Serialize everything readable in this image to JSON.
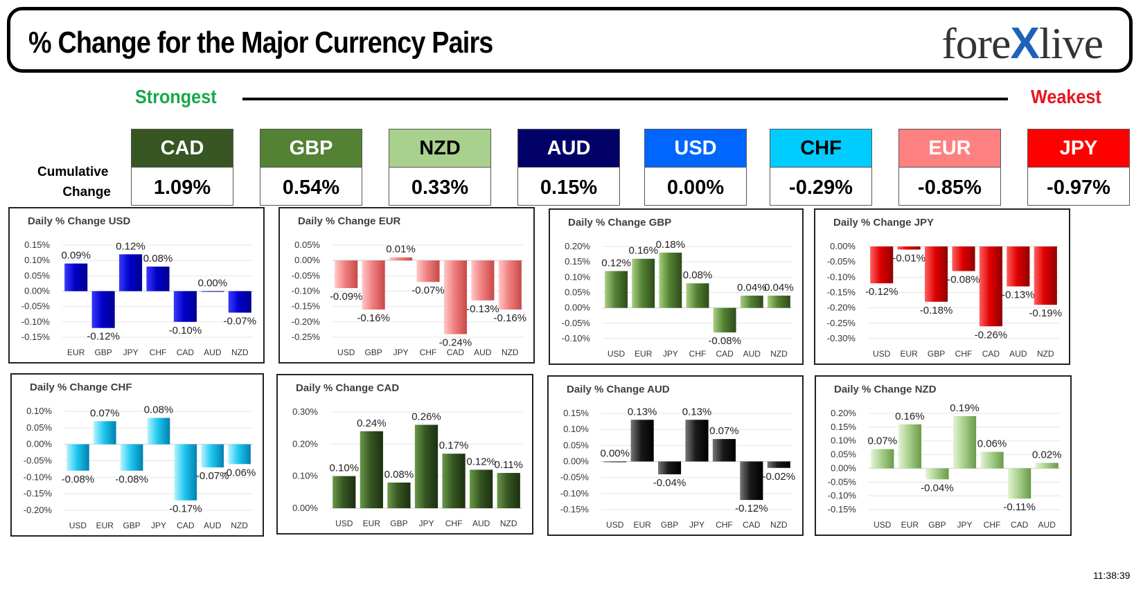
{
  "header": {
    "title": "% Change for the Major Currency Pairs",
    "logo_pre": "fore",
    "logo_x": "X",
    "logo_post": "live"
  },
  "scale": {
    "strongest": "Strongest",
    "weakest": "Weakest"
  },
  "cumulative": {
    "label_line1": "Cumulative",
    "label_line2": "Change",
    "items": [
      {
        "code": "CAD",
        "value": "1.09%",
        "bg": "#375623",
        "fg": "#ffffff"
      },
      {
        "code": "GBP",
        "value": "0.54%",
        "bg": "#548235",
        "fg": "#ffffff"
      },
      {
        "code": "NZD",
        "value": "0.33%",
        "bg": "#a9d18e",
        "fg": "#000000"
      },
      {
        "code": "AUD",
        "value": "0.15%",
        "bg": "#000066",
        "fg": "#ffffff"
      },
      {
        "code": "USD",
        "value": "0.00%",
        "bg": "#0066ff",
        "fg": "#ffffff"
      },
      {
        "code": "CHF",
        "value": "-0.29%",
        "bg": "#00ccff",
        "fg": "#000000"
      },
      {
        "code": "EUR",
        "value": "-0.85%",
        "bg": "#ff8080",
        "fg": "#ffffff"
      },
      {
        "code": "JPY",
        "value": "-0.97%",
        "bg": "#ff0000",
        "fg": "#ffffff"
      }
    ]
  },
  "timestamp": "11:38:39",
  "chart_data": [
    {
      "type": "bar",
      "title": "Daily % Change USD",
      "color": "blue",
      "categories": [
        "EUR",
        "GBP",
        "JPY",
        "CHF",
        "CAD",
        "AUD",
        "NZD"
      ],
      "values": [
        0.09,
        -0.12,
        0.12,
        0.08,
        -0.1,
        0.0,
        -0.07
      ],
      "labels": [
        "0.09%",
        "-0.12%",
        "0.12%",
        "0.08%",
        "-0.10%",
        "0.00%",
        "-0.07%"
      ],
      "ylim": [
        -0.15,
        0.15
      ],
      "yticks": [
        "0.15%",
        "0.10%",
        "0.05%",
        "0.00%",
        "-0.05%",
        "-0.10%",
        "-0.15%"
      ]
    },
    {
      "type": "bar",
      "title": "Daily % Change EUR",
      "color": "pink",
      "categories": [
        "USD",
        "GBP",
        "JPY",
        "CHF",
        "CAD",
        "AUD",
        "NZD"
      ],
      "values": [
        -0.09,
        -0.16,
        0.01,
        -0.07,
        -0.24,
        -0.13,
        -0.16
      ],
      "labels": [
        "-0.09%",
        "-0.16%",
        "0.01%",
        "-0.07%",
        "-0.24%",
        "-0.13%",
        "-0.16%"
      ],
      "ylim": [
        -0.25,
        0.05
      ],
      "yticks": [
        "0.05%",
        "0.00%",
        "-0.05%",
        "-0.10%",
        "-0.15%",
        "-0.20%",
        "-0.25%"
      ]
    },
    {
      "type": "bar",
      "title": "Daily % Change GBP",
      "color": "green",
      "categories": [
        "USD",
        "EUR",
        "JPY",
        "CHF",
        "CAD",
        "AUD",
        "NZD"
      ],
      "values": [
        0.12,
        0.16,
        0.18,
        0.08,
        -0.08,
        0.04,
        0.04
      ],
      "labels": [
        "0.12%",
        "0.16%",
        "0.18%",
        "0.08%",
        "-0.08%",
        "0.04%",
        "0.04%"
      ],
      "ylim": [
        -0.1,
        0.2
      ],
      "yticks": [
        "0.20%",
        "0.15%",
        "0.10%",
        "0.05%",
        "0.00%",
        "-0.05%",
        "-0.10%"
      ]
    },
    {
      "type": "bar",
      "title": "Daily % Change JPY",
      "color": "red",
      "categories": [
        "USD",
        "EUR",
        "GBP",
        "CHF",
        "CAD",
        "AUD",
        "NZD"
      ],
      "values": [
        -0.12,
        -0.01,
        -0.18,
        -0.08,
        -0.26,
        -0.13,
        -0.19
      ],
      "labels": [
        "-0.12%",
        "-0.01%",
        "-0.18%",
        "-0.08%",
        "-0.26%",
        "-0.13%",
        "-0.19%"
      ],
      "ylim": [
        -0.3,
        0.0
      ],
      "yticks": [
        "0.00%",
        "-0.05%",
        "-0.10%",
        "-0.15%",
        "-0.20%",
        "-0.25%",
        "-0.30%"
      ]
    },
    {
      "type": "bar",
      "title": "Daily % Change CHF",
      "color": "cyan",
      "categories": [
        "USD",
        "EUR",
        "GBP",
        "JPY",
        "CAD",
        "AUD",
        "NZD"
      ],
      "values": [
        -0.08,
        0.07,
        -0.08,
        0.08,
        -0.17,
        -0.07,
        -0.06
      ],
      "labels": [
        "-0.08%",
        "0.07%",
        "-0.08%",
        "0.08%",
        "-0.17%",
        "-0.07%",
        "-0.06%"
      ],
      "ylim": [
        -0.2,
        0.1
      ],
      "yticks": [
        "0.10%",
        "0.05%",
        "0.00%",
        "-0.05%",
        "-0.10%",
        "-0.15%",
        "-0.20%"
      ]
    },
    {
      "type": "bar",
      "title": "Daily % Change CAD",
      "color": "darkgreen",
      "categories": [
        "USD",
        "EUR",
        "GBP",
        "JPY",
        "CHF",
        "AUD",
        "NZD"
      ],
      "values": [
        0.1,
        0.24,
        0.08,
        0.26,
        0.17,
        0.12,
        0.11
      ],
      "labels": [
        "0.10%",
        "0.24%",
        "0.08%",
        "0.26%",
        "0.17%",
        "0.12%",
        "0.11%"
      ],
      "ylim": [
        0.0,
        0.3
      ],
      "yticks": [
        "0.30%",
        "0.20%",
        "0.10%",
        "0.00%"
      ]
    },
    {
      "type": "bar",
      "title": "Daily % Change AUD",
      "color": "black",
      "categories": [
        "USD",
        "EUR",
        "GBP",
        "JPY",
        "CHF",
        "CAD",
        "NZD"
      ],
      "values": [
        0.0,
        0.13,
        -0.04,
        0.13,
        0.07,
        -0.12,
        -0.02
      ],
      "labels": [
        "0.00%",
        "0.13%",
        "-0.04%",
        "0.13%",
        "0.07%",
        "-0.12%",
        "-0.02%"
      ],
      "ylim": [
        -0.15,
        0.15
      ],
      "yticks": [
        "0.15%",
        "0.10%",
        "0.05%",
        "0.00%",
        "-0.05%",
        "-0.10%",
        "-0.15%"
      ]
    },
    {
      "type": "bar",
      "title": "Daily % Change NZD",
      "color": "lightgreen",
      "categories": [
        "USD",
        "EUR",
        "GBP",
        "JPY",
        "CHF",
        "CAD",
        "AUD"
      ],
      "values": [
        0.07,
        0.16,
        -0.04,
        0.19,
        0.06,
        -0.11,
        0.02
      ],
      "labels": [
        "0.07%",
        "0.16%",
        "-0.04%",
        "0.19%",
        "0.06%",
        "-0.11%",
        "0.02%"
      ],
      "ylim": [
        -0.15,
        0.2
      ],
      "yticks": [
        "0.20%",
        "0.15%",
        "0.10%",
        "0.05%",
        "0.00%",
        "-0.05%",
        "-0.10%",
        "-0.15%"
      ]
    }
  ]
}
